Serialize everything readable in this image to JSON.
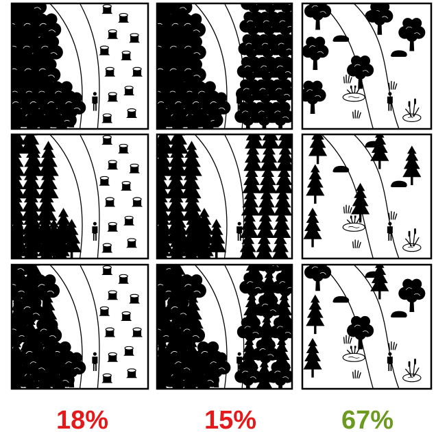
{
  "figure": {
    "columns": [
      {
        "percent": "18%",
        "color": "#e31a1c",
        "panels": [
          {
            "scene": "dense-deciduous-forest-with-clearcut-stumps"
          },
          {
            "scene": "dense-conifer-forest-with-clearcut-stumps"
          },
          {
            "scene": "dense-mixed-forest-with-clearcut-stumps"
          }
        ]
      },
      {
        "percent": "15%",
        "color": "#e31a1c",
        "panels": [
          {
            "scene": "deciduous-forest-on-both-sides-of-path"
          },
          {
            "scene": "conifer-forest-on-both-sides-of-path"
          },
          {
            "scene": "mixed-forest-on-both-sides-of-path"
          }
        ]
      },
      {
        "percent": "67%",
        "color": "#6b9a1f",
        "panels": [
          {
            "scene": "open-deciduous-forest-with-rocks-and-wetland"
          },
          {
            "scene": "open-conifer-forest-with-rocks-and-wetland"
          },
          {
            "scene": "open-mixed-forest-with-rocks-and-wetland"
          }
        ]
      }
    ],
    "icons": {
      "deciduous": "deciduous-tree-icon",
      "conifer": "conifer-tree-icon",
      "stump": "tree-stump-icon",
      "person": "person-icon",
      "rock": "rock-icon",
      "grass": "grass-tuft-icon",
      "pond": "pond-icon",
      "cattail": "cattail-icon"
    }
  }
}
